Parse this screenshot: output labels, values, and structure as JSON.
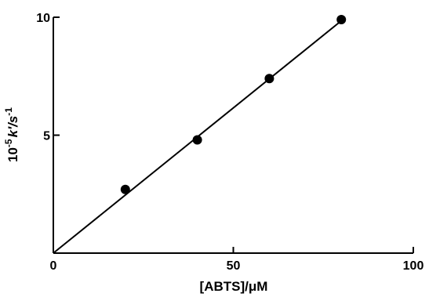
{
  "chart_data": {
    "type": "scatter",
    "title": "",
    "xlabel": "[ABTS]/μM",
    "ylabel_parts": {
      "base": "10",
      "exp": "-5",
      "mid": "k′/s",
      "exp2": "-1"
    },
    "xlim": [
      0,
      100
    ],
    "ylim": [
      0,
      10
    ],
    "x_ticks": [
      0,
      50,
      100
    ],
    "y_ticks": [
      5,
      10
    ],
    "x_tick_labels": [
      "0",
      "50",
      "100"
    ],
    "y_tick_labels": [
      "5",
      "10"
    ],
    "grid": false,
    "series": [
      {
        "marker": "filled-circle",
        "x": [
          20,
          40,
          60,
          80
        ],
        "y": [
          2.7,
          4.8,
          7.4,
          9.9
        ]
      }
    ],
    "fit_line": {
      "x": [
        0,
        80
      ],
      "y": [
        0,
        9.85
      ]
    },
    "colors": {
      "ink": "#000000",
      "background": "#ffffff"
    }
  }
}
